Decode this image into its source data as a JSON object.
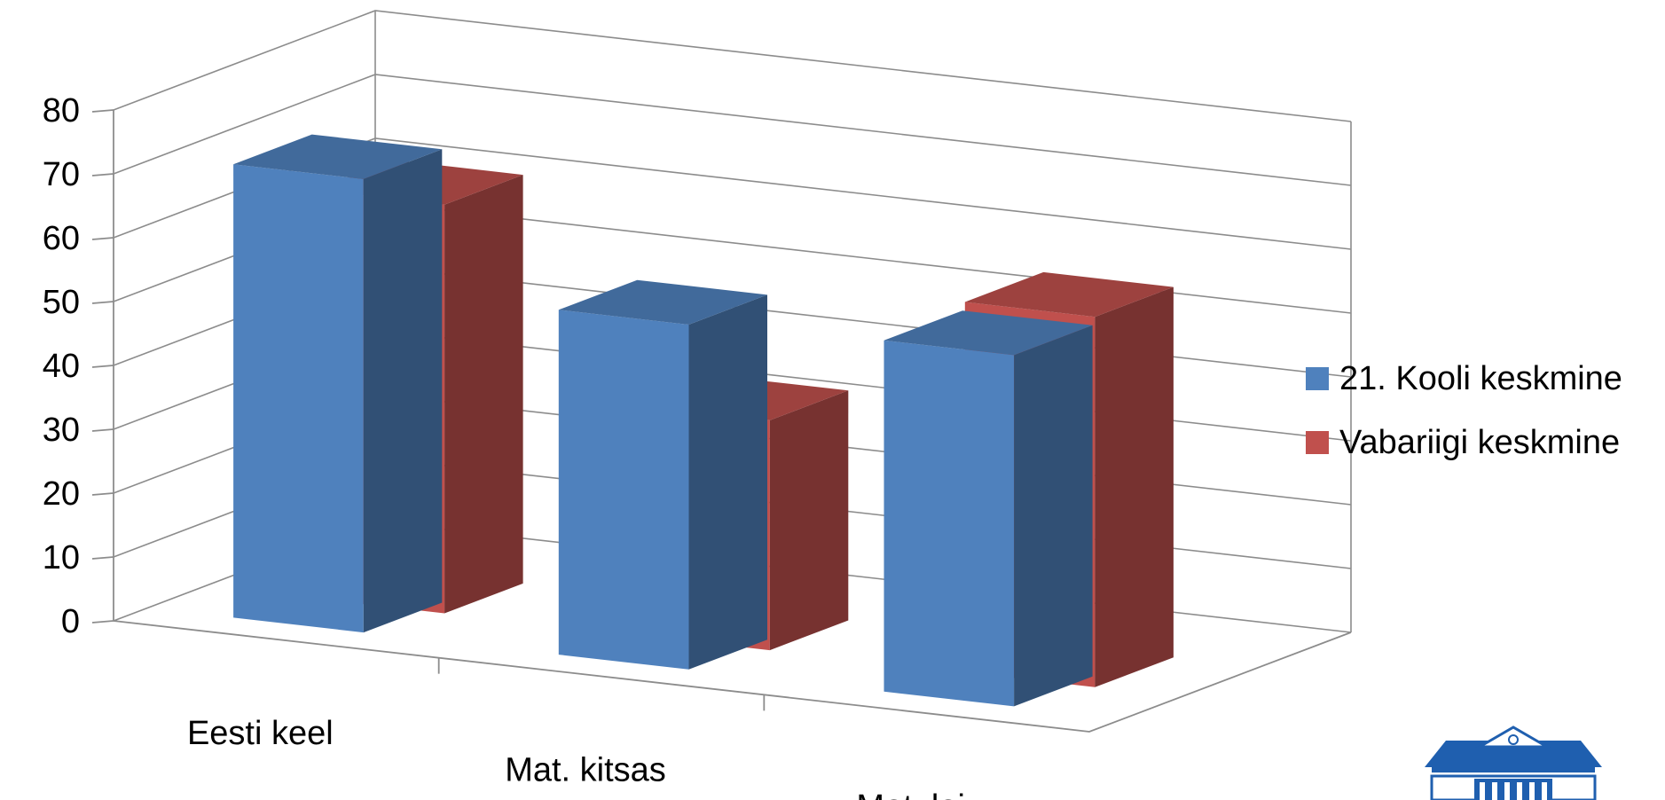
{
  "chart_data": {
    "type": "bar",
    "style": "3d-clustered-columns",
    "categories": [
      "Eesti keel",
      "Mat. kitsas",
      "Mat. lai"
    ],
    "series": [
      {
        "name": "21. Kooli keskmine",
        "color": "#4F81BD",
        "values": [
          71,
          54,
          55
        ]
      },
      {
        "name": "Vabariigi keskmine",
        "color": "#C0504D",
        "values": [
          64,
          36,
          58
        ]
      }
    ],
    "y_ticks": [
      "0",
      "10",
      "20",
      "30",
      "40",
      "50",
      "60",
      "70",
      "80"
    ],
    "ylim": [
      0,
      80
    ],
    "grid": true,
    "legend_position": "right"
  },
  "logo": {
    "name": "school-building-logo",
    "color": "#1F5FAF"
  }
}
